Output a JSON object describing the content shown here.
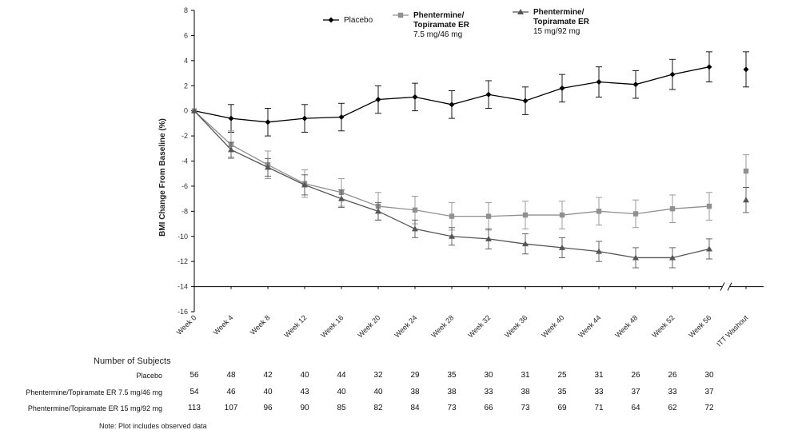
{
  "chart_data": {
    "type": "line",
    "ylabel": "BMI Change From Baseline (%)",
    "ylim": [
      -16,
      8
    ],
    "yticks": [
      8,
      6,
      4,
      2,
      0,
      -2,
      -4,
      -6,
      -8,
      -10,
      -12,
      -14,
      -16
    ],
    "categories": [
      "Week 0",
      "Week 4",
      "Week 8",
      "Week 12",
      "Week 16",
      "Week 20",
      "Week 24",
      "Week 28",
      "Week 32",
      "Week 36",
      "Week 40",
      "Week 44",
      "Week 48",
      "Week 52",
      "Week 56",
      "ITT Washout"
    ],
    "series": [
      {
        "name": "Placebo",
        "legend_lines": [
          "Placebo"
        ],
        "marker": "diamond",
        "color": "#000000",
        "values": [
          0,
          -0.6,
          -0.9,
          -0.6,
          -0.5,
          0.9,
          1.1,
          0.5,
          1.3,
          0.8,
          1.8,
          2.3,
          2.1,
          2.9,
          3.5,
          3.3
        ],
        "err": [
          0,
          1.1,
          1.1,
          1.1,
          1.1,
          1.1,
          1.1,
          1.1,
          1.1,
          1.1,
          1.1,
          1.2,
          1.1,
          1.2,
          1.2,
          1.4
        ]
      },
      {
        "name": "Phentermine/Topiramate ER 7.5 mg/46 mg",
        "legend_lines": [
          "Phentermine/",
          "Topiramate ER",
          "7.5 mg/46 mg"
        ],
        "marker": "square",
        "color": "#909090",
        "values": [
          0,
          -2.7,
          -4.3,
          -5.8,
          -6.5,
          -7.6,
          -7.9,
          -8.4,
          -8.4,
          -8.3,
          -8.3,
          -8.0,
          -8.2,
          -7.8,
          -7.6,
          -4.8
        ],
        "err": [
          0,
          1.1,
          1.1,
          1.1,
          1.1,
          1.1,
          1.1,
          1.1,
          1.1,
          1.1,
          1.1,
          1.1,
          1.1,
          1.1,
          1.1,
          1.3
        ]
      },
      {
        "name": "Phentermine/Topiramate ER 15 mg/92 mg",
        "legend_lines": [
          "Phentermine/",
          "Topiramate ER",
          "15 mg/92 mg"
        ],
        "marker": "triangle",
        "color": "#555555",
        "values": [
          0,
          -3.1,
          -4.5,
          -5.9,
          -7.0,
          -8.0,
          -9.4,
          -10.0,
          -10.2,
          -10.6,
          -10.9,
          -11.2,
          -11.7,
          -11.7,
          -11.0,
          -7.1
        ],
        "err": [
          0,
          0.6,
          0.7,
          0.8,
          0.7,
          0.7,
          0.7,
          0.7,
          0.8,
          0.8,
          0.8,
          0.8,
          0.8,
          0.8,
          0.8,
          1.0
        ]
      }
    ]
  },
  "table": {
    "title": "Number of Subjects",
    "rows": [
      {
        "label": "Placebo",
        "values": [
          "56",
          "48",
          "42",
          "40",
          "44",
          "32",
          "29",
          "35",
          "30",
          "31",
          "25",
          "31",
          "26",
          "26",
          "30"
        ]
      },
      {
        "label": "Phentermine/Topiramate ER 7.5 mg/46 mg",
        "values": [
          "54",
          "46",
          "40",
          "43",
          "40",
          "40",
          "38",
          "38",
          "33",
          "38",
          "35",
          "33",
          "37",
          "33",
          "37"
        ]
      },
      {
        "label": "Phentermine/Topiramate ER 15 mg/92 mg",
        "values": [
          "113",
          "107",
          "96",
          "90",
          "85",
          "82",
          "84",
          "73",
          "66",
          "73",
          "69",
          "71",
          "64",
          "62",
          "72"
        ]
      }
    ]
  },
  "note": "Note:  Plot includes observed data"
}
